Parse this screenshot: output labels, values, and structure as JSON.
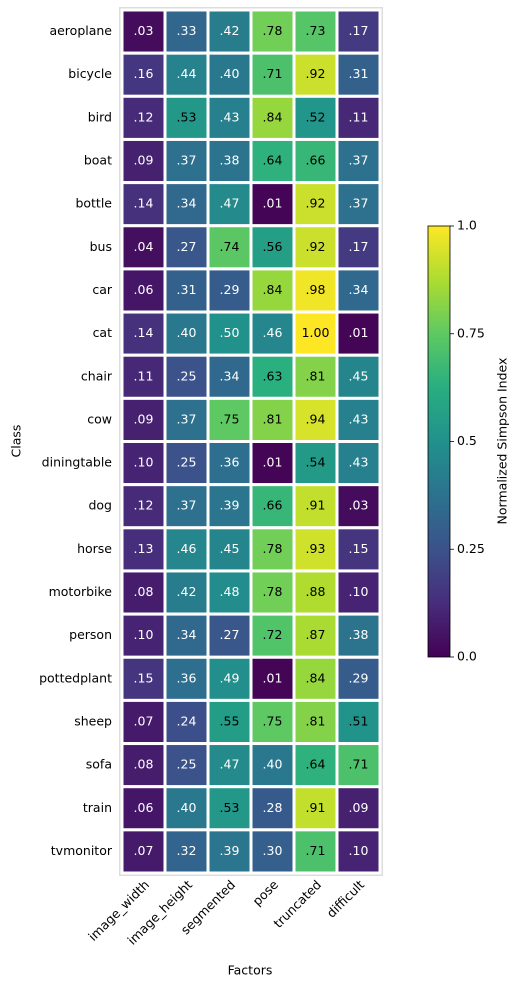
{
  "chart_data": {
    "type": "heatmap",
    "x_label": "Factors",
    "y_label": "Class",
    "x_categories": [
      "image_width",
      "image_height",
      "segmented",
      "pose",
      "truncated",
      "difficult"
    ],
    "y_categories": [
      "aeroplane",
      "bicycle",
      "bird",
      "boat",
      "bottle",
      "bus",
      "car",
      "cat",
      "chair",
      "cow",
      "diningtable",
      "dog",
      "horse",
      "motorbike",
      "person",
      "pottedplant",
      "sheep",
      "sofa",
      "train",
      "tvmonitor"
    ],
    "values": [
      [
        0.03,
        0.33,
        0.42,
        0.78,
        0.73,
        0.17
      ],
      [
        0.16,
        0.44,
        0.4,
        0.71,
        0.92,
        0.31
      ],
      [
        0.12,
        0.53,
        0.43,
        0.84,
        0.52,
        0.11
      ],
      [
        0.09,
        0.37,
        0.38,
        0.64,
        0.66,
        0.37
      ],
      [
        0.14,
        0.34,
        0.47,
        0.01,
        0.92,
        0.37
      ],
      [
        0.04,
        0.27,
        0.74,
        0.56,
        0.92,
        0.17
      ],
      [
        0.06,
        0.31,
        0.29,
        0.84,
        0.98,
        0.34
      ],
      [
        0.14,
        0.4,
        0.5,
        0.46,
        1.0,
        0.01
      ],
      [
        0.11,
        0.25,
        0.34,
        0.63,
        0.81,
        0.45
      ],
      [
        0.09,
        0.37,
        0.75,
        0.81,
        0.94,
        0.43
      ],
      [
        0.1,
        0.25,
        0.36,
        0.01,
        0.54,
        0.43
      ],
      [
        0.12,
        0.37,
        0.39,
        0.66,
        0.91,
        0.03
      ],
      [
        0.13,
        0.46,
        0.45,
        0.78,
        0.93,
        0.15
      ],
      [
        0.08,
        0.42,
        0.48,
        0.78,
        0.88,
        0.1
      ],
      [
        0.1,
        0.34,
        0.27,
        0.72,
        0.87,
        0.38
      ],
      [
        0.15,
        0.36,
        0.49,
        0.01,
        0.84,
        0.29
      ],
      [
        0.07,
        0.24,
        0.55,
        0.75,
        0.81,
        0.51
      ],
      [
        0.08,
        0.25,
        0.47,
        0.4,
        0.64,
        0.71
      ],
      [
        0.06,
        0.4,
        0.53,
        0.28,
        0.91,
        0.09
      ],
      [
        0.07,
        0.32,
        0.39,
        0.3,
        0.71,
        0.1
      ]
    ],
    "value_labels": [
      [
        ".03",
        ".33",
        ".42",
        ".78",
        ".73",
        ".17"
      ],
      [
        ".16",
        ".44",
        ".40",
        ".71",
        ".92",
        ".31"
      ],
      [
        ".12",
        ".53",
        ".43",
        ".84",
        ".52",
        ".11"
      ],
      [
        ".09",
        ".37",
        ".38",
        ".64",
        ".66",
        ".37"
      ],
      [
        ".14",
        ".34",
        ".47",
        ".01",
        ".92",
        ".37"
      ],
      [
        ".04",
        ".27",
        ".74",
        ".56",
        ".92",
        ".17"
      ],
      [
        ".06",
        ".31",
        ".29",
        ".84",
        ".98",
        ".34"
      ],
      [
        ".14",
        ".40",
        ".50",
        ".46",
        "1.00",
        ".01"
      ],
      [
        ".11",
        ".25",
        ".34",
        ".63",
        ".81",
        ".45"
      ],
      [
        ".09",
        ".37",
        ".75",
        ".81",
        ".94",
        ".43"
      ],
      [
        ".10",
        ".25",
        ".36",
        ".01",
        ".54",
        ".43"
      ],
      [
        ".12",
        ".37",
        ".39",
        ".66",
        ".91",
        ".03"
      ],
      [
        ".13",
        ".46",
        ".45",
        ".78",
        ".93",
        ".15"
      ],
      [
        ".08",
        ".42",
        ".48",
        ".78",
        ".88",
        ".10"
      ],
      [
        ".10",
        ".34",
        ".27",
        ".72",
        ".87",
        ".38"
      ],
      [
        ".15",
        ".36",
        ".49",
        ".01",
        ".84",
        ".29"
      ],
      [
        ".07",
        ".24",
        ".55",
        ".75",
        ".81",
        ".51"
      ],
      [
        ".08",
        ".25",
        ".47",
        ".40",
        ".64",
        ".71"
      ],
      [
        ".06",
        ".40",
        ".53",
        ".28",
        ".91",
        ".09"
      ],
      [
        ".07",
        ".32",
        ".39",
        ".30",
        ".71",
        ".10"
      ]
    ],
    "colormap": "viridis",
    "colorbar": {
      "label": "Normalized Simpson Index",
      "lim": [
        0,
        1
      ],
      "ticks": [
        {
          "value": 0,
          "label": "0.0"
        },
        0.25,
        0.5,
        0.75,
        {
          "value": 1,
          "label": "1.0"
        }
      ]
    }
  }
}
